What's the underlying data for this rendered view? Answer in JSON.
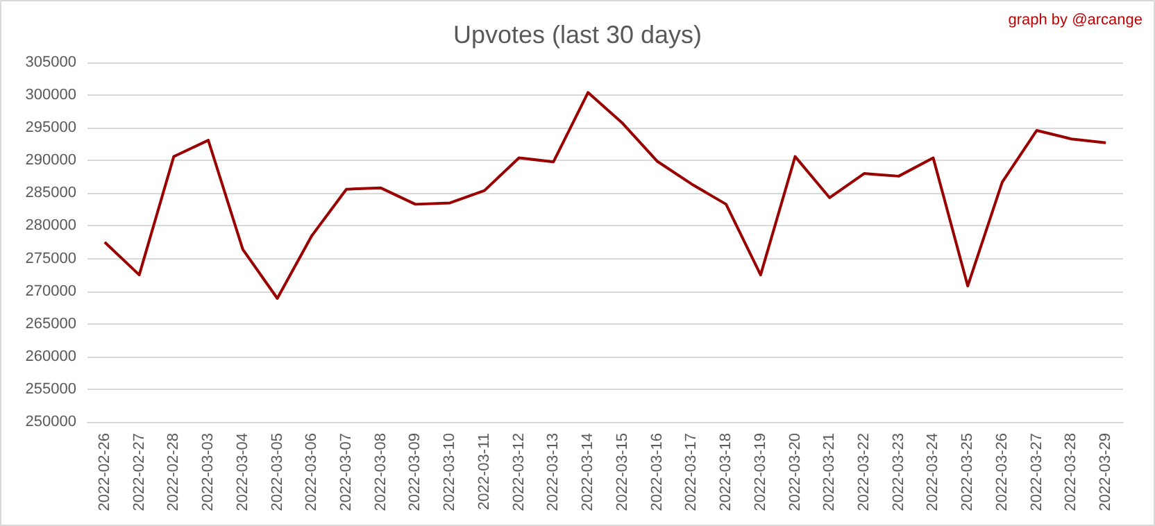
{
  "chart_data": {
    "type": "line",
    "title": "Upvotes (last 30 days)",
    "annotations": [
      "graph by @arcange"
    ],
    "categories": [
      "2022-02-26",
      "2022-02-27",
      "2022-02-28",
      "2022-03-03",
      "2022-03-04",
      "2022-03-05",
      "2022-03-06",
      "2022-03-07",
      "2022-03-08",
      "2022-03-09",
      "2022-03-10",
      "2022-03-11",
      "2022-03-12",
      "2022-03-13",
      "2022-03-14",
      "2022-03-15",
      "2022-03-16",
      "2022-03-17",
      "2022-03-18",
      "2022-03-19",
      "2022-03-20",
      "2022-03-21",
      "2022-03-22",
      "2022-03-23",
      "2022-03-24",
      "2022-03-25",
      "2022-03-26",
      "2022-03-27",
      "2022-03-28",
      "2022-03-29"
    ],
    "series": [
      {
        "color": "#990000",
        "values": [
          277500,
          272500,
          290600,
          293100,
          276400,
          268900,
          278500,
          285600,
          285800,
          283300,
          283500,
          285400,
          290400,
          289800,
          300400,
          295700,
          289900,
          286400,
          283300,
          272500,
          290600,
          284300,
          288000,
          287600,
          290400,
          270800,
          286700,
          294600,
          293300,
          292700
        ]
      }
    ],
    "ylim": [
      250000,
      305000
    ],
    "yticks": [
      250000,
      255000,
      260000,
      265000,
      270000,
      275000,
      280000,
      285000,
      290000,
      295000,
      300000,
      305000
    ],
    "grid": "y",
    "marker": "none",
    "line_style": "solid"
  }
}
